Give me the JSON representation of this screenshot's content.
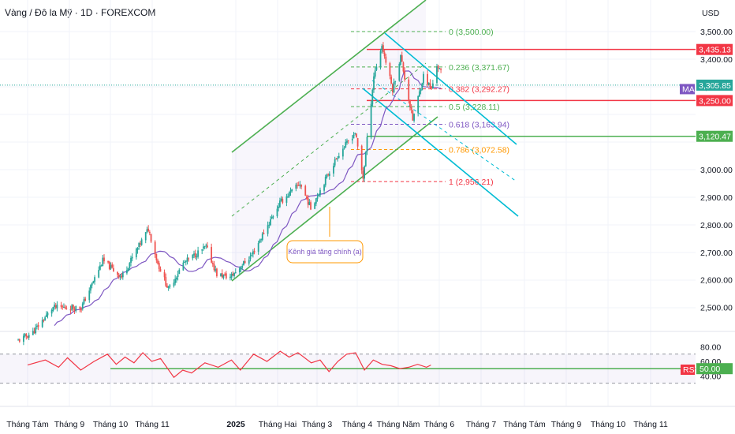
{
  "header": {
    "title": "Vàng / Đô la Mỹ · 1D · FOREXCOM",
    "currency": "USD"
  },
  "colors": {
    "up": "#26a69a",
    "down": "#ef5350",
    "channel": "#4caf50",
    "bear": "#00bcd4",
    "ma": "#7e57c2",
    "rsi": "#f23645",
    "red_line": "#f23645",
    "green_line": "#4caf50"
  },
  "chart_data": {
    "type": "candlestick",
    "x_ticks": [
      "Tháng Tám",
      "Tháng 9",
      "Tháng 10",
      "Tháng 11",
      "2025",
      "Tháng Hai",
      "Tháng 3",
      "Tháng 4",
      "Tháng Năm",
      "Tháng 6",
      "Tháng 7",
      "Tháng Tám",
      "Tháng 9",
      "Tháng 10",
      "Tháng 11"
    ],
    "y_ticks": [
      "3,500.00",
      "3,400.00",
      "3,300.00",
      "3,000.00",
      "2,900.00",
      "2,800.00",
      "2,700.00",
      "2,600.00",
      "2,500.00"
    ],
    "y_tick_values": [
      3500,
      3400,
      3300,
      3000,
      2900,
      2800,
      2700,
      2600,
      2500
    ],
    "price_path": [
      [
        "2024-07-25",
        2380
      ],
      [
        "2024-08-05",
        2410
      ],
      [
        "2024-08-20",
        2500
      ],
      [
        "2024-09-10",
        2500
      ],
      [
        "2024-09-26",
        2670
      ],
      [
        "2024-10-10",
        2610
      ],
      [
        "2024-10-30",
        2785
      ],
      [
        "2024-11-06",
        2660
      ],
      [
        "2024-11-14",
        2565
      ],
      [
        "2024-11-25",
        2660
      ],
      [
        "2024-12-12",
        2720
      ],
      [
        "2024-12-20",
        2620
      ],
      [
        "2024-12-30",
        2610
      ],
      [
        "2025-01-15",
        2690
      ],
      [
        "2025-02-05",
        2880
      ],
      [
        "2025-02-20",
        2950
      ],
      [
        "2025-02-28",
        2860
      ],
      [
        "2025-03-20",
        3050
      ],
      [
        "2025-04-02",
        3135
      ],
      [
        "2025-04-08",
        2970
      ],
      [
        "2025-04-16",
        3340
      ],
      [
        "2025-04-22",
        3450
      ],
      [
        "2025-04-30",
        3290
      ],
      [
        "2025-05-06",
        3410
      ],
      [
        "2025-05-15",
        3180
      ],
      [
        "2025-05-23",
        3340
      ],
      [
        "2025-05-29",
        3290
      ],
      [
        "2025-06-02",
        3380
      ],
      [
        "2025-06-05",
        3352
      ]
    ],
    "ma_label": "MA",
    "price_tags": [
      {
        "label": "3,435.13",
        "value": 3435.13,
        "color": "#f23645"
      },
      {
        "label": "3,305.85",
        "value": 3305.85,
        "color": "#26a69a"
      },
      {
        "label": "3,250.00",
        "value": 3250.0,
        "color": "#f23645"
      },
      {
        "label": "3,120.47",
        "value": 3120.47,
        "color": "#4caf50"
      }
    ],
    "fibonacci": [
      {
        "label": "0 (3,500.00)",
        "level": 0,
        "value": 3500.0,
        "color": "#4caf50"
      },
      {
        "label": "0.236 (3,371.67)",
        "level": 0.236,
        "value": 3371.67,
        "color": "#4caf50"
      },
      {
        "label": "0.382 (3,292.27)",
        "level": 0.382,
        "value": 3292.27,
        "color": "#f23645"
      },
      {
        "label": "0.5 (3,228.11)",
        "level": 0.5,
        "value": 3228.11,
        "color": "#4caf50"
      },
      {
        "label": "0.618 (3,163.94)",
        "level": 0.618,
        "value": 3163.94,
        "color": "#7e57c2"
      },
      {
        "label": "0.786 (3,072.58)",
        "level": 0.786,
        "value": 3072.58,
        "color": "#ff9800"
      },
      {
        "label": "1 (2,956.21)",
        "level": 1,
        "value": 2956.21,
        "color": "#f23645"
      }
    ],
    "horizontal_lines": [
      {
        "value": 3435.13,
        "color": "#f23645"
      },
      {
        "value": 3250.0,
        "color": "#f23645"
      },
      {
        "value": 3120.47,
        "color": "#4caf50"
      }
    ],
    "annotation": "Kênh giá tăng chính (a)",
    "rsi": {
      "label": "RSI",
      "current": "50.00",
      "y_ticks": [
        "80.00",
        "60.00",
        "40.00"
      ],
      "y_tick_values": [
        80,
        60,
        40
      ],
      "levels": [
        70,
        30
      ],
      "baseline": 50,
      "path": [
        [
          0,
          55
        ],
        [
          8,
          62
        ],
        [
          14,
          52
        ],
        [
          18,
          65
        ],
        [
          24,
          48
        ],
        [
          30,
          60
        ],
        [
          36,
          70
        ],
        [
          40,
          56
        ],
        [
          44,
          66
        ],
        [
          48,
          58
        ],
        [
          52,
          72
        ],
        [
          56,
          60
        ],
        [
          60,
          64
        ],
        [
          66,
          38
        ],
        [
          70,
          48
        ],
        [
          74,
          44
        ],
        [
          80,
          58
        ],
        [
          86,
          52
        ],
        [
          92,
          62
        ],
        [
          96,
          48
        ],
        [
          102,
          70
        ],
        [
          108,
          60
        ],
        [
          114,
          74
        ],
        [
          118,
          66
        ],
        [
          122,
          72
        ],
        [
          128,
          58
        ],
        [
          132,
          62
        ],
        [
          136,
          46
        ],
        [
          140,
          60
        ],
        [
          144,
          70
        ],
        [
          148,
          72
        ],
        [
          152,
          48
        ],
        [
          156,
          62
        ],
        [
          160,
          56
        ],
        [
          164,
          54
        ],
        [
          168,
          50
        ],
        [
          172,
          52
        ],
        [
          176,
          56
        ],
        [
          180,
          52
        ],
        [
          182,
          55
        ]
      ]
    }
  }
}
